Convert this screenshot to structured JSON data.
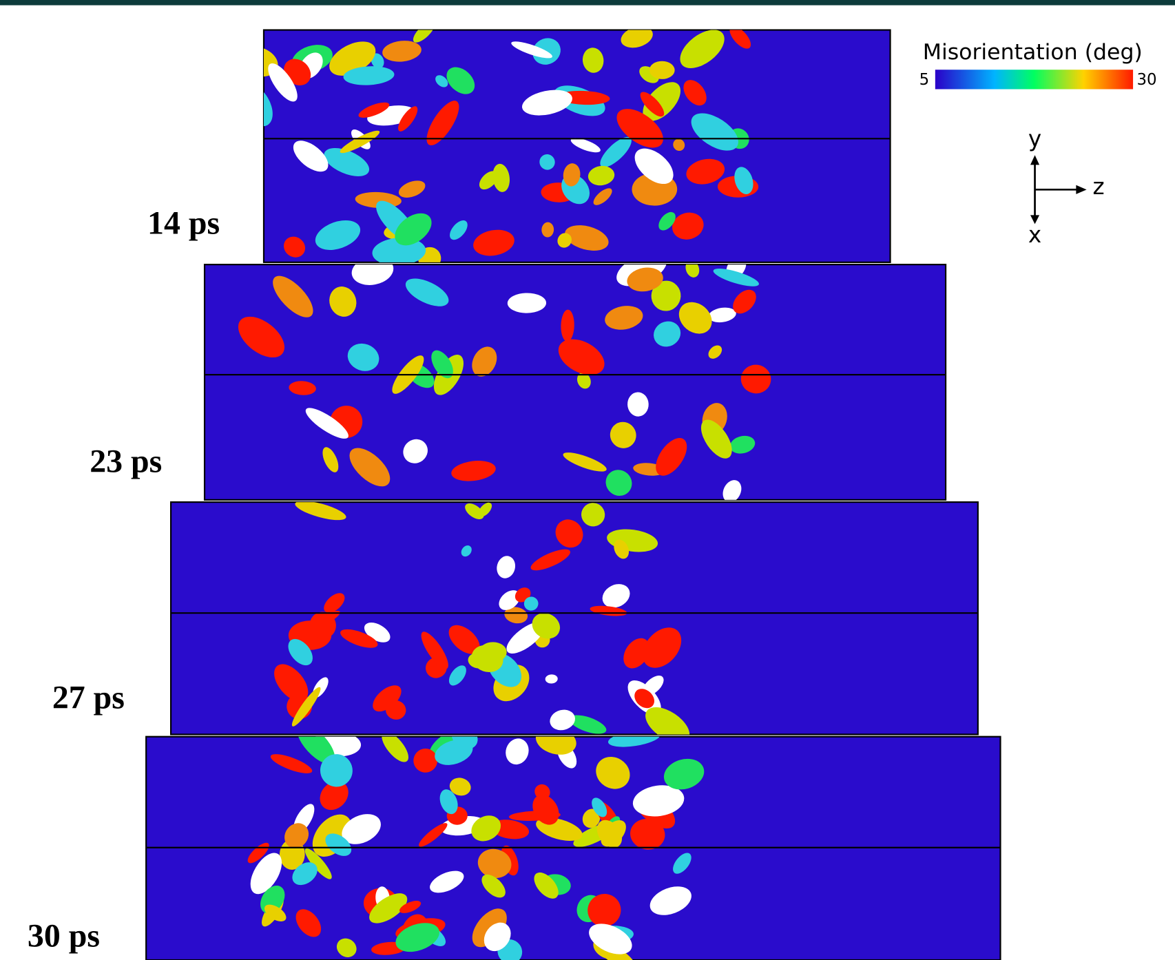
{
  "panels": [
    {
      "label": "14 ps"
    },
    {
      "label": "23 ps"
    },
    {
      "label": "27 ps"
    },
    {
      "label": "30 ps"
    }
  ],
  "colorbar": {
    "title": "Misorientation (deg)",
    "min": 5,
    "max": 30
  },
  "axes": {
    "up": "y",
    "right": "z",
    "out": "x"
  }
}
